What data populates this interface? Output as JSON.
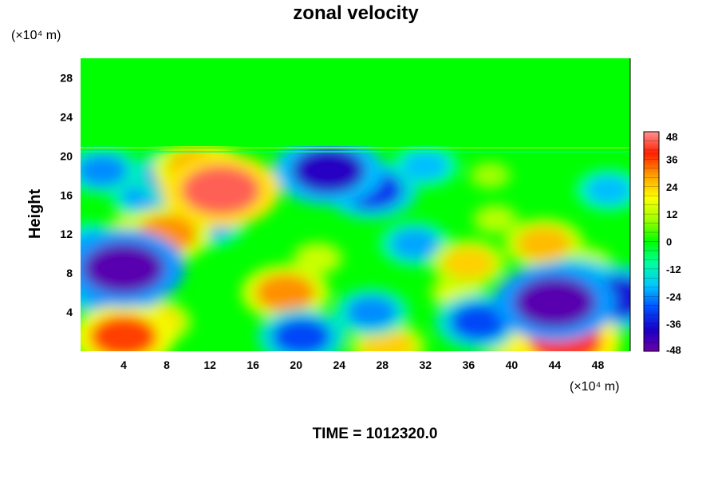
{
  "chart_data": {
    "type": "heatmap",
    "title": "zonal velocity",
    "ylabel": "Height",
    "x_unit": "(×10⁴ m)",
    "y_unit": "(×10⁴ m)",
    "xlim": [
      0,
      51
    ],
    "ylim": [
      0,
      30
    ],
    "xticks": [
      "4",
      "8",
      "12",
      "16",
      "20",
      "24",
      "28",
      "32",
      "36",
      "40",
      "44",
      "48"
    ],
    "yticks": [
      "4",
      "8",
      "12",
      "16",
      "20",
      "24",
      "28"
    ],
    "grid": false,
    "colorbar": {
      "position": "right",
      "min": -48,
      "max": 48,
      "step": 4,
      "ticks": [
        "48",
        "36",
        "24",
        "12",
        "0",
        "-12",
        "-24",
        "-36",
        "-48"
      ],
      "colors_low_to_high": [
        "#6a00a8",
        "#1a00c8",
        "#0050ff",
        "#00c8ff",
        "#00ffa0",
        "#00ff00",
        "#a0ff00",
        "#ffff00",
        "#ffa000",
        "#ff2000",
        "#ff9090"
      ]
    },
    "field_background": 0,
    "upper_layer_above_height": 21,
    "features": [
      {
        "x": 4,
        "y": 8.5,
        "value": -46
      },
      {
        "x": 3,
        "y": 6.5,
        "value": -34
      },
      {
        "x": 1,
        "y": 11,
        "value": -20
      },
      {
        "x": 8,
        "y": 12,
        "value": 30
      },
      {
        "x": 6,
        "y": 12.5,
        "value": 22
      },
      {
        "x": 13,
        "y": 16.5,
        "value": 44
      },
      {
        "x": 11,
        "y": 18.5,
        "value": 32
      },
      {
        "x": 6,
        "y": 16,
        "value": -22
      },
      {
        "x": 8.5,
        "y": 18,
        "value": -26
      },
      {
        "x": 2,
        "y": 18.5,
        "value": -24
      },
      {
        "x": 12,
        "y": 13,
        "value": -22
      },
      {
        "x": 19,
        "y": 6,
        "value": 30
      },
      {
        "x": 22,
        "y": 9.5,
        "value": 14
      },
      {
        "x": 20.5,
        "y": 1.5,
        "value": -30
      },
      {
        "x": 4,
        "y": 1.5,
        "value": 36
      },
      {
        "x": 7,
        "y": 3,
        "value": 22
      },
      {
        "x": 23,
        "y": 18.5,
        "value": -40
      },
      {
        "x": 27,
        "y": 16.5,
        "value": -32
      },
      {
        "x": 31,
        "y": 11,
        "value": -22
      },
      {
        "x": 28.5,
        "y": 0.5,
        "value": 24
      },
      {
        "x": 27,
        "y": 4,
        "value": -24
      },
      {
        "x": 36,
        "y": 9,
        "value": 24
      },
      {
        "x": 35,
        "y": 6,
        "value": 16
      },
      {
        "x": 37,
        "y": 3,
        "value": -30
      },
      {
        "x": 43,
        "y": 11,
        "value": 26
      },
      {
        "x": 38.5,
        "y": 13.5,
        "value": 12
      },
      {
        "x": 44,
        "y": 5,
        "value": -46
      },
      {
        "x": 46,
        "y": 6.5,
        "value": -32
      },
      {
        "x": 45,
        "y": 1,
        "value": 40
      },
      {
        "x": 40,
        "y": 1,
        "value": 20
      },
      {
        "x": 50,
        "y": 5.5,
        "value": -36
      },
      {
        "x": 49,
        "y": 16.5,
        "value": -20
      },
      {
        "x": 38,
        "y": 18,
        "value": 10
      },
      {
        "x": 32,
        "y": 19,
        "value": -20
      },
      {
        "x": 47,
        "y": 9,
        "value": 14
      }
    ]
  },
  "footer": {
    "time_label": "TIME = 1012320.0"
  }
}
